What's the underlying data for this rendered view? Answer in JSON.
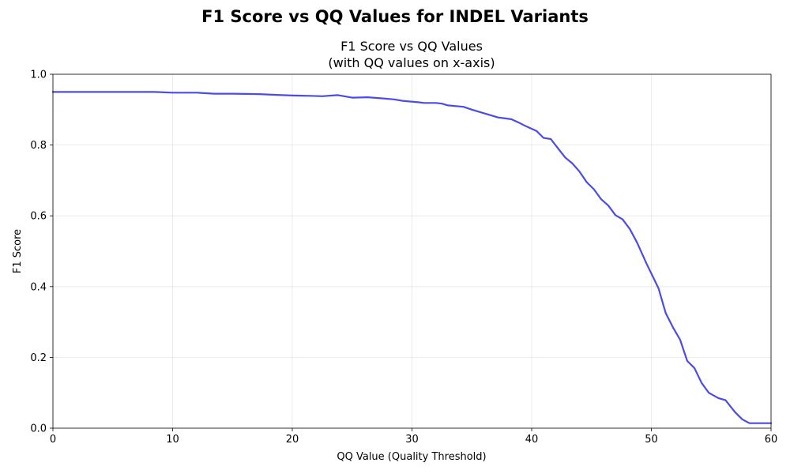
{
  "figure": {
    "suptitle": "F1 Score vs QQ Values for INDEL Variants"
  },
  "chart_data": {
    "type": "line",
    "title_line1": "F1 Score vs QQ Values",
    "title_line2": "(with QQ values on x-axis)",
    "xlabel": "QQ Value (Quality Threshold)",
    "ylabel": "F1 Score",
    "xlim": [
      0,
      60
    ],
    "ylim": [
      0,
      1.0
    ],
    "xticks": [
      0,
      10,
      20,
      30,
      40,
      50,
      60
    ],
    "yticks": [
      0.0,
      0.2,
      0.4,
      0.6,
      0.8,
      1.0
    ],
    "xtick_labels": [
      "0",
      "10",
      "20",
      "30",
      "40",
      "50",
      "60"
    ],
    "ytick_labels": [
      "0.0",
      "0.2",
      "0.4",
      "0.6",
      "0.8",
      "1.0"
    ],
    "grid": true,
    "line_color": "#4b4be8",
    "series": [
      {
        "x": [
          0,
          2,
          4,
          6,
          8.5,
          10,
          12,
          13.5,
          15,
          17.2,
          18.5,
          20,
          21.5,
          22.5,
          23.8,
          25,
          26.3,
          27.5,
          28.5,
          29.2,
          30.5,
          31,
          32,
          32.5,
          33,
          34.3,
          35,
          36,
          37.2,
          38.3,
          39,
          39.6,
          40.4,
          41,
          41.6,
          42.1,
          42.8,
          43.4,
          44,
          44.6,
          45.2,
          45.8,
          46.4,
          47,
          47.6,
          48.2,
          48.8,
          49.6,
          50.6,
          51.2,
          51.8,
          52.4,
          53,
          53.6,
          54.2,
          54.8,
          55.6,
          56.2,
          57,
          57.6,
          58.2,
          59,
          60
        ],
        "y": [
          0.95,
          0.95,
          0.95,
          0.95,
          0.95,
          0.948,
          0.948,
          0.945,
          0.945,
          0.944,
          0.942,
          0.94,
          0.939,
          0.938,
          0.941,
          0.934,
          0.935,
          0.932,
          0.929,
          0.925,
          0.921,
          0.919,
          0.919,
          0.917,
          0.912,
          0.908,
          0.9,
          0.89,
          0.878,
          0.873,
          0.862,
          0.852,
          0.84,
          0.82,
          0.817,
          0.795,
          0.765,
          0.748,
          0.725,
          0.695,
          0.675,
          0.647,
          0.629,
          0.602,
          0.59,
          0.563,
          0.525,
          0.465,
          0.395,
          0.325,
          0.285,
          0.25,
          0.19,
          0.17,
          0.128,
          0.1,
          0.085,
          0.079,
          0.045,
          0.025,
          0.014,
          0.014,
          0.014
        ]
      }
    ]
  }
}
